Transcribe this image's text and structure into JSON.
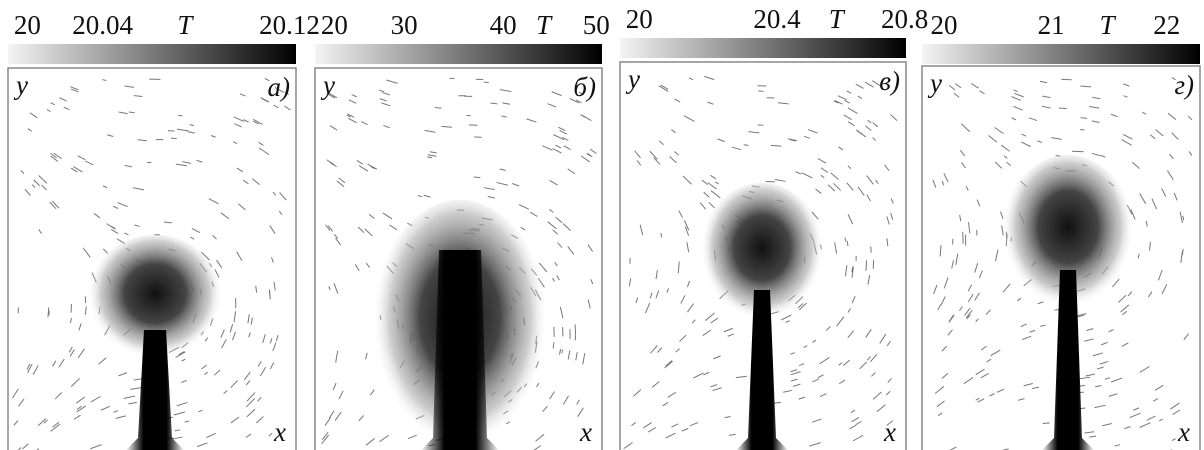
{
  "panels": [
    {
      "scale": [
        "20",
        "20.04",
        "T",
        "20.12"
      ],
      "y_label": "y",
      "x_label": "x",
      "tag": "а)"
    },
    {
      "scale": [
        "20",
        "30",
        "40",
        "T",
        "50"
      ],
      "y_label": "y",
      "x_label": "x",
      "tag": "б)"
    },
    {
      "scale": [
        "20",
        "20.4",
        "T",
        "20.8"
      ],
      "y_label": "y",
      "x_label": "x",
      "tag": "в)"
    },
    {
      "scale": [
        "20",
        "21",
        "T",
        "22"
      ],
      "y_label": "y",
      "x_label": "x",
      "tag": "г)"
    }
  ]
}
